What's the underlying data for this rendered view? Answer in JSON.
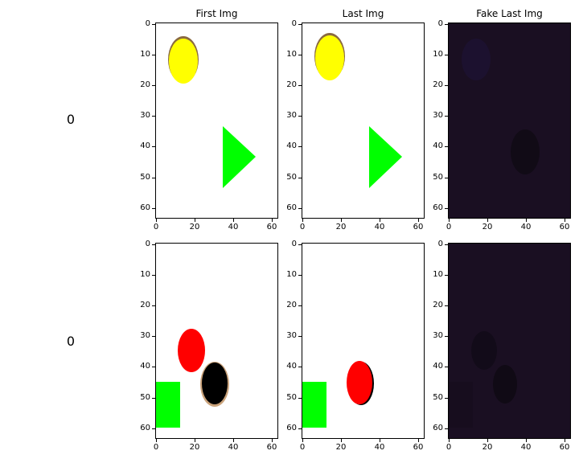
{
  "figure": {
    "column_titles": [
      "First Img",
      "Last Img",
      "Fake Last Img"
    ],
    "row_labels": [
      "0",
      "0"
    ],
    "y_ticks": [
      "0",
      "10",
      "20",
      "30",
      "40",
      "50",
      "60"
    ],
    "x_ticks": [
      "0",
      "20",
      "40",
      "60"
    ]
  },
  "colors": {
    "yellow_ball": "#ffff00",
    "green_shape": "#00ff00",
    "red_ball": "#ff0000",
    "black_ball": "#000000",
    "fake_background": "#1a0f22",
    "fake_shadow": "#0f0a14"
  }
}
